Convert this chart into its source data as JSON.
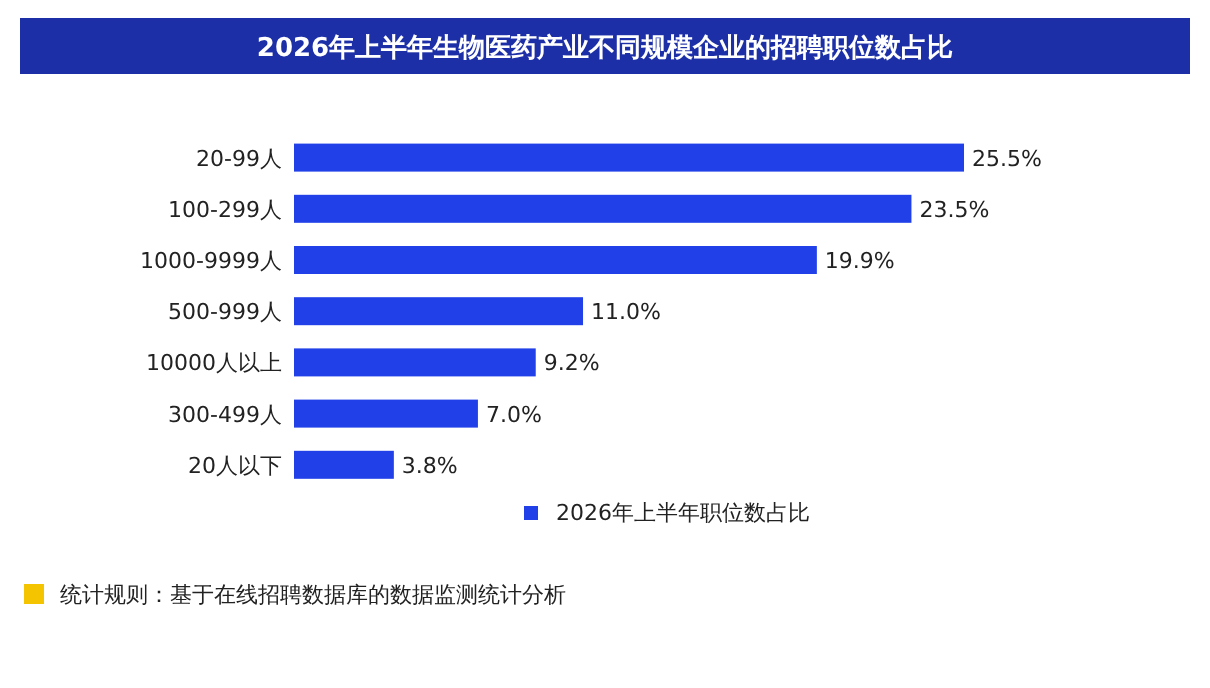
{
  "chart_data": {
    "type": "bar",
    "orientation": "horizontal",
    "title": "2026年上半年生物医药产业不同规模企业的招聘职位数占比",
    "categories": [
      "20-99人",
      "100-299人",
      "1000-9999人",
      "500-999人",
      "10000人以上",
      "300-499人",
      "20人以下"
    ],
    "series": [
      {
        "name": "2026年上半年职位数占比",
        "color": "#2140e8",
        "values": [
          25.5,
          23.5,
          19.9,
          11.0,
          9.2,
          7.0,
          3.8
        ],
        "value_labels": [
          "25.5%",
          "23.5%",
          "19.9%",
          "11.0%",
          "9.2%",
          "7.0%",
          "3.8%"
        ]
      }
    ],
    "legend": "bottom",
    "annotations": [
      "统计规则：基于在线招聘数据库的数据监测统计分析"
    ]
  }
}
